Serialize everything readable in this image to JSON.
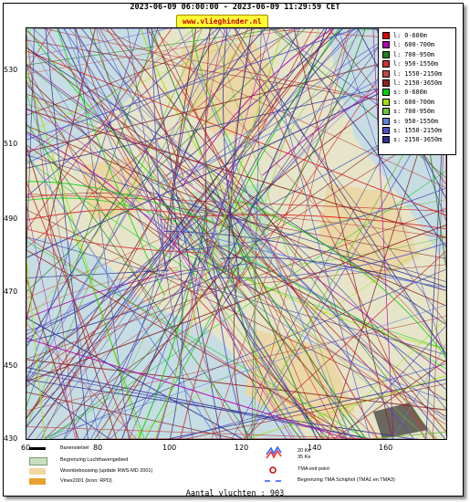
{
  "header": {
    "date_range": "2023-06-09 06:00:00 - 2023-06-09 11:29:59 CET",
    "site": "www.vlieghinder.nl"
  },
  "axes": {
    "y_ticks": [
      "530",
      "510",
      "490",
      "470",
      "450",
      "430"
    ],
    "x_ticks": [
      "60",
      "80",
      "100",
      "120",
      "140",
      "160"
    ]
  },
  "legend": {
    "items": [
      {
        "label": "l: 0-600m",
        "color": "#e00000"
      },
      {
        "label": "l: 600-700m",
        "color": "#b000b0"
      },
      {
        "label": "l: 700-950m",
        "color": "#208020"
      },
      {
        "label": "l: 950-1550m",
        "color": "#cc3333"
      },
      {
        "label": "l: 1550-2150m",
        "color": "#c04848"
      },
      {
        "label": "l: 2150-3650m",
        "color": "#8b2020"
      },
      {
        "label": "s: 0-600m",
        "color": "#00d000"
      },
      {
        "label": "s: 600-700m",
        "color": "#a0e000"
      },
      {
        "label": "s: 700-950m",
        "color": "#70c040"
      },
      {
        "label": "s: 950-1550m",
        "color": "#6080e0"
      },
      {
        "label": "s: 1550-2150m",
        "color": "#5050c0"
      },
      {
        "label": "s: 2150-3650m",
        "color": "#303090"
      }
    ]
  },
  "map_legend": {
    "items": [
      {
        "label": "Banenstelsel",
        "color": "#000000"
      },
      {
        "label": "Begrenzing Luchthavengebied",
        "color": "#c8e0c0"
      },
      {
        "label": "Woonbebouwing (update RWS-MD 2001)",
        "color": "#f0d8a0"
      },
      {
        "label": "Vinex2001 (bron: RPD)",
        "color": "#e8a030"
      },
      {
        "label": "20 Ke",
        "color": "#3060ff"
      },
      {
        "label": "35 Ke",
        "color": "#ff3030"
      },
      {
        "label": "TMA exit point",
        "color": "#cc0000"
      },
      {
        "label": "Begrenzing TMA Schiphol  (TMA1 en TMA3)",
        "color": "#6080ff"
      }
    ]
  },
  "footer": {
    "flight_count": "Aantal vluchten : 903"
  }
}
